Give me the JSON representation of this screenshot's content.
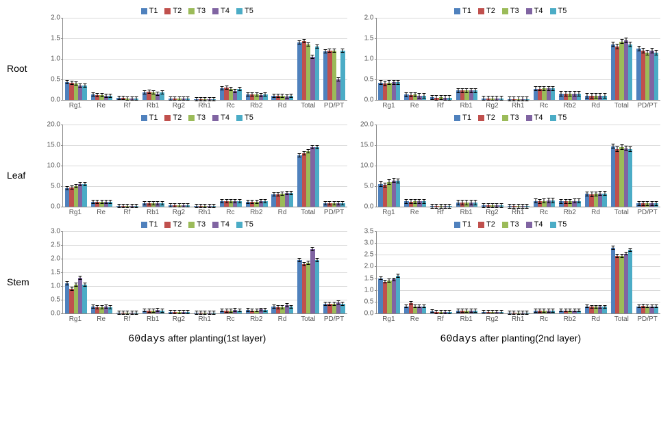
{
  "colors": {
    "T1": "#4f81bd",
    "T2": "#c0504d",
    "T3": "#9bbb59",
    "T4": "#8064a2",
    "T5": "#4bacc6",
    "grid": "#d9d9d9",
    "axis": "#888888",
    "bg": "#ffffff"
  },
  "series": [
    "T1",
    "T2",
    "T3",
    "T4",
    "T5"
  ],
  "categories": [
    "Rg1",
    "Re",
    "Rf",
    "Rb1",
    "Rg2",
    "Rh1",
    "Rc",
    "Rb2",
    "Rd",
    "Total",
    "PD/PT"
  ],
  "row_labels": [
    "Root",
    "Leaf",
    "Stem"
  ],
  "col_captions": {
    "left": {
      "prefix": "60days",
      "rest": " after planting(1st layer)"
    },
    "right": {
      "prefix": "60days",
      "rest": " after planting(2nd layer)"
    }
  },
  "charts": [
    {
      "id": "root-left",
      "row": "Root",
      "col": "left",
      "ymax": 2.0,
      "ytick_step": 0.5,
      "data": {
        "Rg1": [
          0.43,
          0.42,
          0.4,
          0.35,
          0.35
        ],
        "Re": [
          0.13,
          0.12,
          0.12,
          0.1,
          0.1
        ],
        "Rf": [
          0.05,
          0.05,
          0.04,
          0.04,
          0.04
        ],
        "Rb1": [
          0.18,
          0.2,
          0.18,
          0.15,
          0.18
        ],
        "Rg2": [
          0.03,
          0.03,
          0.03,
          0.03,
          0.03
        ],
        "Rh1": [
          0.02,
          0.02,
          0.02,
          0.02,
          0.02
        ],
        "Rc": [
          0.28,
          0.3,
          0.27,
          0.22,
          0.27
        ],
        "Rb2": [
          0.14,
          0.14,
          0.13,
          0.11,
          0.13
        ],
        "Rd": [
          0.1,
          0.1,
          0.1,
          0.08,
          0.1
        ],
        "Total": [
          1.4,
          1.43,
          1.35,
          1.05,
          1.3
        ],
        "PD/PT": [
          1.18,
          1.2,
          1.2,
          0.5,
          1.2
        ]
      },
      "err": 0.05
    },
    {
      "id": "root-right",
      "row": "Root",
      "col": "right",
      "ymax": 2.0,
      "ytick_step": 0.5,
      "data": {
        "Rg1": [
          0.42,
          0.4,
          0.42,
          0.43,
          0.43
        ],
        "Re": [
          0.13,
          0.12,
          0.13,
          0.1,
          0.1
        ],
        "Rf": [
          0.06,
          0.05,
          0.06,
          0.05,
          0.05
        ],
        "Rb1": [
          0.23,
          0.23,
          0.23,
          0.23,
          0.23
        ],
        "Rg2": [
          0.04,
          0.04,
          0.04,
          0.04,
          0.04
        ],
        "Rh1": [
          0.02,
          0.02,
          0.02,
          0.02,
          0.02
        ],
        "Rc": [
          0.27,
          0.27,
          0.28,
          0.28,
          0.28
        ],
        "Rb2": [
          0.15,
          0.15,
          0.15,
          0.15,
          0.15
        ],
        "Rd": [
          0.1,
          0.1,
          0.1,
          0.1,
          0.1
        ],
        "Total": [
          1.35,
          1.3,
          1.42,
          1.45,
          1.35
        ],
        "PD/PT": [
          1.25,
          1.2,
          1.15,
          1.2,
          1.15
        ]
      },
      "err": 0.06
    },
    {
      "id": "leaf-left",
      "row": "Leaf",
      "col": "left",
      "ymax": 20.0,
      "ytick_step": 5.0,
      "data": {
        "Rg1": [
          4.5,
          4.6,
          5.0,
          5.5,
          5.5
        ],
        "Re": [
          1.1,
          1.1,
          1.1,
          1.1,
          1.1
        ],
        "Rf": [
          0.1,
          0.1,
          0.1,
          0.1,
          0.1
        ],
        "Rb1": [
          0.9,
          0.9,
          0.9,
          0.9,
          0.9
        ],
        "Rg2": [
          0.3,
          0.3,
          0.3,
          0.3,
          0.3
        ],
        "Rh1": [
          0.1,
          0.1,
          0.1,
          0.1,
          0.1
        ],
        "Rc": [
          1.3,
          1.3,
          1.3,
          1.4,
          1.4
        ],
        "Rb2": [
          1.2,
          1.2,
          1.2,
          1.3,
          1.3
        ],
        "Rd": [
          3.0,
          3.0,
          3.1,
          3.3,
          3.3
        ],
        "Total": [
          12.5,
          13.0,
          13.5,
          14.5,
          14.5
        ],
        "PD/PT": [
          0.9,
          0.9,
          0.9,
          0.9,
          0.9
        ]
      },
      "err": 0.5
    },
    {
      "id": "leaf-right",
      "row": "Leaf",
      "col": "right",
      "ymax": 20.0,
      "ytick_step": 5.0,
      "data": {
        "Rg1": [
          5.5,
          5.3,
          6.0,
          6.4,
          6.3
        ],
        "Re": [
          1.3,
          1.2,
          1.3,
          1.3,
          1.3
        ],
        "Rf": [
          0.1,
          0.1,
          0.1,
          0.1,
          0.1
        ],
        "Rb1": [
          1.0,
          1.0,
          1.0,
          1.0,
          1.0
        ],
        "Rg2": [
          0.3,
          0.3,
          0.3,
          0.3,
          0.3
        ],
        "Rh1": [
          0.1,
          0.1,
          0.1,
          0.1,
          0.1
        ],
        "Rc": [
          1.4,
          1.3,
          1.4,
          1.5,
          1.5
        ],
        "Rb2": [
          1.3,
          1.3,
          1.3,
          1.4,
          1.4
        ],
        "Rd": [
          3.1,
          3.0,
          3.1,
          3.2,
          3.2
        ],
        "Total": [
          14.7,
          14.0,
          14.5,
          14.2,
          14.0
        ],
        "PD/PT": [
          0.8,
          0.8,
          0.8,
          0.8,
          0.8
        ]
      },
      "err": 0.6
    },
    {
      "id": "stem-left",
      "row": "Stem",
      "col": "left",
      "ymax": 3.0,
      "ytick_step": 0.5,
      "data": {
        "Rg1": [
          1.1,
          0.9,
          1.05,
          1.3,
          1.05
        ],
        "Re": [
          0.25,
          0.22,
          0.22,
          0.25,
          0.22
        ],
        "Rf": [
          0.02,
          0.02,
          0.02,
          0.02,
          0.02
        ],
        "Rb1": [
          0.11,
          0.1,
          0.1,
          0.12,
          0.1
        ],
        "Rg2": [
          0.05,
          0.05,
          0.05,
          0.05,
          0.05
        ],
        "Rh1": [
          0.02,
          0.02,
          0.02,
          0.02,
          0.02
        ],
        "Rc": [
          0.11,
          0.1,
          0.1,
          0.13,
          0.11
        ],
        "Rb2": [
          0.12,
          0.11,
          0.11,
          0.14,
          0.12
        ],
        "Rd": [
          0.25,
          0.22,
          0.22,
          0.3,
          0.24
        ],
        "Total": [
          1.95,
          1.8,
          1.85,
          2.35,
          1.95
        ],
        "PD/PT": [
          0.35,
          0.35,
          0.35,
          0.4,
          0.35
        ]
      },
      "err": 0.07
    },
    {
      "id": "stem-right",
      "row": "Stem",
      "col": "right",
      "ymax": 3.5,
      "ytick_step": 0.5,
      "data": {
        "Rg1": [
          1.5,
          1.35,
          1.4,
          1.45,
          1.6
        ],
        "Re": [
          0.3,
          0.45,
          0.3,
          0.3,
          0.3
        ],
        "Rf": [
          0.1,
          0.06,
          0.06,
          0.06,
          0.06
        ],
        "Rb1": [
          0.12,
          0.12,
          0.12,
          0.12,
          0.12
        ],
        "Rg2": [
          0.07,
          0.07,
          0.07,
          0.07,
          0.07
        ],
        "Rh1": [
          0.03,
          0.03,
          0.03,
          0.03,
          0.03
        ],
        "Rc": [
          0.12,
          0.12,
          0.12,
          0.12,
          0.12
        ],
        "Rb2": [
          0.13,
          0.13,
          0.13,
          0.13,
          0.13
        ],
        "Rd": [
          0.3,
          0.28,
          0.28,
          0.28,
          0.28
        ],
        "Total": [
          2.8,
          2.45,
          2.45,
          2.55,
          2.7
        ],
        "PD/PT": [
          0.3,
          0.32,
          0.3,
          0.3,
          0.3
        ]
      },
      "err": 0.08
    }
  ]
}
